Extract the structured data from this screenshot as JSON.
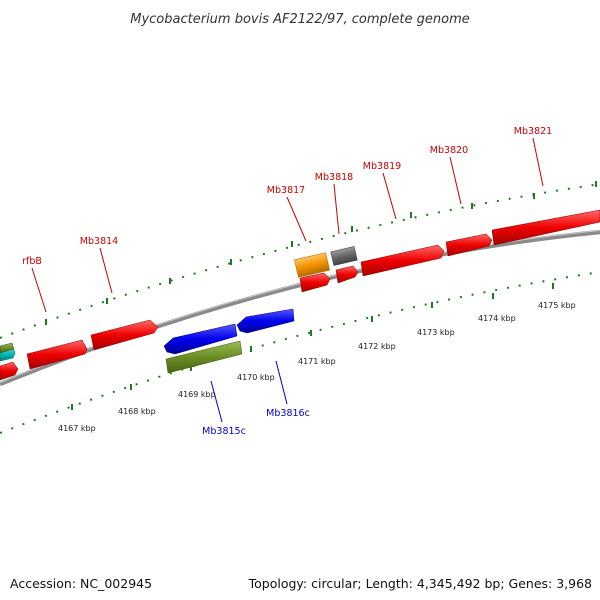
{
  "title": "Mycobacterium bovis AF2122/97, complete genome",
  "footer": {
    "accession": "Accession: NC_002945",
    "summary": "Topology: circular; Length: 4,345,492 bp; Genes: 3,968"
  },
  "scale_labels": [
    "4167 kbp",
    "4168 kbp",
    "4169 kbp",
    "4170 kbp",
    "4171 kbp",
    "4172 kbp",
    "4173 kbp",
    "4174 kbp",
    "4175 kbp"
  ],
  "colors": {
    "forward_gene": "#ee0000",
    "reverse_gene": "#0000ee",
    "orange_feature": "#f39200",
    "gray_feature": "#666666",
    "cyan_feature": "#00bcbc",
    "olive_feature": "#6b8e23",
    "backbone": "#888888",
    "ticks": "#1f7a1f",
    "forward_label": "#cc0000",
    "reverse_label": "#0000cc"
  },
  "gene_labels": {
    "forward": [
      "rfbB",
      "Mb3814",
      "Mb3817",
      "Mb3818",
      "Mb3819",
      "Mb3820",
      "Mb3821"
    ],
    "reverse": [
      "Mb3815c",
      "Mb3816c"
    ]
  }
}
